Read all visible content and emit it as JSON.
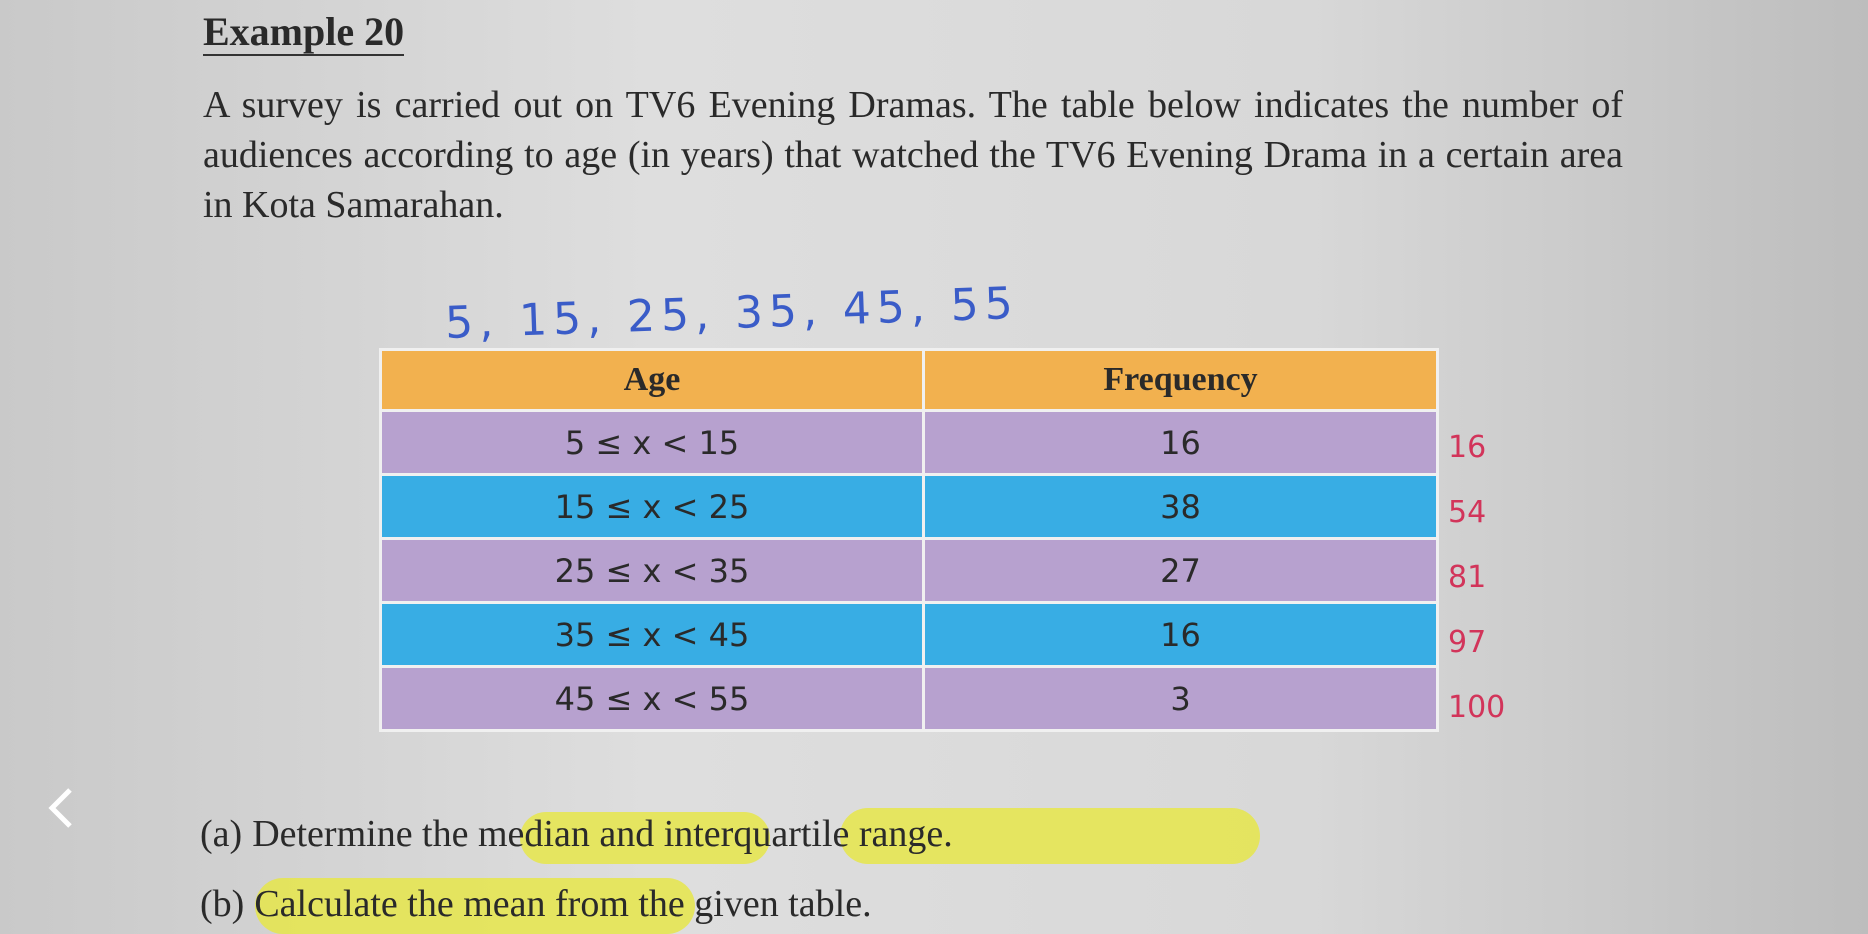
{
  "header": {
    "title": "Example 20"
  },
  "paragraph": "A survey is carried out on TV6 Evening Dramas. The table below indicates the number of audiences according to age (in years) that watched the TV6 Evening Drama in a certain area in Kota Samarahan.",
  "handwritten_midpoints": "5, 15, 25, 35, 45, 55",
  "table": {
    "header": [
      "Age",
      "Frequency"
    ],
    "rows": [
      [
        "5 ≤ x < 15",
        16
      ],
      [
        "15 ≤ x < 25",
        38
      ],
      [
        "25 ≤ x < 35",
        27
      ],
      [
        "35 ≤ x < 45",
        16
      ],
      [
        "45 ≤ x < 55",
        3
      ]
    ]
  },
  "handwritten_cumulative": [
    16,
    54,
    81,
    97,
    100
  ],
  "questions": [
    {
      "label": "(a)",
      "text": "Determine the median and interquartile range."
    },
    {
      "label": "(b)",
      "text": "Calculate the mean from the given table."
    }
  ]
}
